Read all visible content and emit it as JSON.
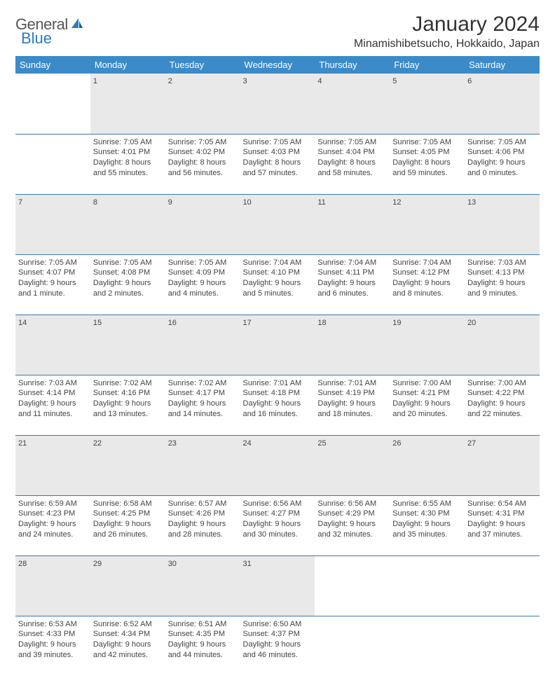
{
  "brand": {
    "word1": "General",
    "word2": "Blue"
  },
  "title": "January 2024",
  "location": "Minamishibetsucho, Hokkaido, Japan",
  "colors": {
    "header_bg": "#3b8bc9",
    "header_text": "#ffffff",
    "daynum_bg": "#e9e9e9",
    "row_border": "#3b78a8",
    "brand_gray": "#555555",
    "brand_blue": "#2b7cc0",
    "text": "#444444",
    "background": "#ffffff"
  },
  "typography": {
    "title_fontsize": 30,
    "location_fontsize": 16,
    "header_fontsize": 13,
    "cell_fontsize": 11,
    "daynum_fontsize": 12
  },
  "layout": {
    "columns": 7,
    "rows": 5
  },
  "weekdays": [
    "Sunday",
    "Monday",
    "Tuesday",
    "Wednesday",
    "Thursday",
    "Friday",
    "Saturday"
  ],
  "weeks": [
    {
      "days": [
        {
          "n": "",
          "lines": [
            "",
            "",
            "",
            ""
          ]
        },
        {
          "n": "1",
          "lines": [
            "Sunrise: 7:05 AM",
            "Sunset: 4:01 PM",
            "Daylight: 8 hours",
            "and 55 minutes."
          ]
        },
        {
          "n": "2",
          "lines": [
            "Sunrise: 7:05 AM",
            "Sunset: 4:02 PM",
            "Daylight: 8 hours",
            "and 56 minutes."
          ]
        },
        {
          "n": "3",
          "lines": [
            "Sunrise: 7:05 AM",
            "Sunset: 4:03 PM",
            "Daylight: 8 hours",
            "and 57 minutes."
          ]
        },
        {
          "n": "4",
          "lines": [
            "Sunrise: 7:05 AM",
            "Sunset: 4:04 PM",
            "Daylight: 8 hours",
            "and 58 minutes."
          ]
        },
        {
          "n": "5",
          "lines": [
            "Sunrise: 7:05 AM",
            "Sunset: 4:05 PM",
            "Daylight: 8 hours",
            "and 59 minutes."
          ]
        },
        {
          "n": "6",
          "lines": [
            "Sunrise: 7:05 AM",
            "Sunset: 4:06 PM",
            "Daylight: 9 hours",
            "and 0 minutes."
          ]
        }
      ]
    },
    {
      "days": [
        {
          "n": "7",
          "lines": [
            "Sunrise: 7:05 AM",
            "Sunset: 4:07 PM",
            "Daylight: 9 hours",
            "and 1 minute."
          ]
        },
        {
          "n": "8",
          "lines": [
            "Sunrise: 7:05 AM",
            "Sunset: 4:08 PM",
            "Daylight: 9 hours",
            "and 2 minutes."
          ]
        },
        {
          "n": "9",
          "lines": [
            "Sunrise: 7:05 AM",
            "Sunset: 4:09 PM",
            "Daylight: 9 hours",
            "and 4 minutes."
          ]
        },
        {
          "n": "10",
          "lines": [
            "Sunrise: 7:04 AM",
            "Sunset: 4:10 PM",
            "Daylight: 9 hours",
            "and 5 minutes."
          ]
        },
        {
          "n": "11",
          "lines": [
            "Sunrise: 7:04 AM",
            "Sunset: 4:11 PM",
            "Daylight: 9 hours",
            "and 6 minutes."
          ]
        },
        {
          "n": "12",
          "lines": [
            "Sunrise: 7:04 AM",
            "Sunset: 4:12 PM",
            "Daylight: 9 hours",
            "and 8 minutes."
          ]
        },
        {
          "n": "13",
          "lines": [
            "Sunrise: 7:03 AM",
            "Sunset: 4:13 PM",
            "Daylight: 9 hours",
            "and 9 minutes."
          ]
        }
      ]
    },
    {
      "days": [
        {
          "n": "14",
          "lines": [
            "Sunrise: 7:03 AM",
            "Sunset: 4:14 PM",
            "Daylight: 9 hours",
            "and 11 minutes."
          ]
        },
        {
          "n": "15",
          "lines": [
            "Sunrise: 7:02 AM",
            "Sunset: 4:16 PM",
            "Daylight: 9 hours",
            "and 13 minutes."
          ]
        },
        {
          "n": "16",
          "lines": [
            "Sunrise: 7:02 AM",
            "Sunset: 4:17 PM",
            "Daylight: 9 hours",
            "and 14 minutes."
          ]
        },
        {
          "n": "17",
          "lines": [
            "Sunrise: 7:01 AM",
            "Sunset: 4:18 PM",
            "Daylight: 9 hours",
            "and 16 minutes."
          ]
        },
        {
          "n": "18",
          "lines": [
            "Sunrise: 7:01 AM",
            "Sunset: 4:19 PM",
            "Daylight: 9 hours",
            "and 18 minutes."
          ]
        },
        {
          "n": "19",
          "lines": [
            "Sunrise: 7:00 AM",
            "Sunset: 4:21 PM",
            "Daylight: 9 hours",
            "and 20 minutes."
          ]
        },
        {
          "n": "20",
          "lines": [
            "Sunrise: 7:00 AM",
            "Sunset: 4:22 PM",
            "Daylight: 9 hours",
            "and 22 minutes."
          ]
        }
      ]
    },
    {
      "days": [
        {
          "n": "21",
          "lines": [
            "Sunrise: 6:59 AM",
            "Sunset: 4:23 PM",
            "Daylight: 9 hours",
            "and 24 minutes."
          ]
        },
        {
          "n": "22",
          "lines": [
            "Sunrise: 6:58 AM",
            "Sunset: 4:25 PM",
            "Daylight: 9 hours",
            "and 26 minutes."
          ]
        },
        {
          "n": "23",
          "lines": [
            "Sunrise: 6:57 AM",
            "Sunset: 4:26 PM",
            "Daylight: 9 hours",
            "and 28 minutes."
          ]
        },
        {
          "n": "24",
          "lines": [
            "Sunrise: 6:56 AM",
            "Sunset: 4:27 PM",
            "Daylight: 9 hours",
            "and 30 minutes."
          ]
        },
        {
          "n": "25",
          "lines": [
            "Sunrise: 6:56 AM",
            "Sunset: 4:29 PM",
            "Daylight: 9 hours",
            "and 32 minutes."
          ]
        },
        {
          "n": "26",
          "lines": [
            "Sunrise: 6:55 AM",
            "Sunset: 4:30 PM",
            "Daylight: 9 hours",
            "and 35 minutes."
          ]
        },
        {
          "n": "27",
          "lines": [
            "Sunrise: 6:54 AM",
            "Sunset: 4:31 PM",
            "Daylight: 9 hours",
            "and 37 minutes."
          ]
        }
      ]
    },
    {
      "days": [
        {
          "n": "28",
          "lines": [
            "Sunrise: 6:53 AM",
            "Sunset: 4:33 PM",
            "Daylight: 9 hours",
            "and 39 minutes."
          ]
        },
        {
          "n": "29",
          "lines": [
            "Sunrise: 6:52 AM",
            "Sunset: 4:34 PM",
            "Daylight: 9 hours",
            "and 42 minutes."
          ]
        },
        {
          "n": "30",
          "lines": [
            "Sunrise: 6:51 AM",
            "Sunset: 4:35 PM",
            "Daylight: 9 hours",
            "and 44 minutes."
          ]
        },
        {
          "n": "31",
          "lines": [
            "Sunrise: 6:50 AM",
            "Sunset: 4:37 PM",
            "Daylight: 9 hours",
            "and 46 minutes."
          ]
        },
        {
          "n": "",
          "lines": [
            "",
            "",
            "",
            ""
          ]
        },
        {
          "n": "",
          "lines": [
            "",
            "",
            "",
            ""
          ]
        },
        {
          "n": "",
          "lines": [
            "",
            "",
            "",
            ""
          ]
        }
      ]
    }
  ]
}
